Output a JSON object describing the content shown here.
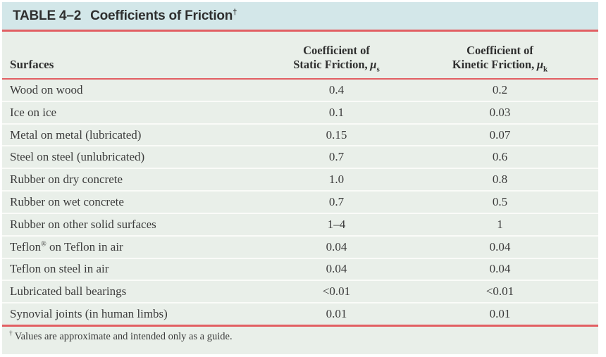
{
  "table": {
    "title": {
      "label": "TABLE 4–2",
      "text": "Coefficients of Friction",
      "dagger": "†"
    },
    "columns": {
      "surfaces": "Surfaces",
      "static": {
        "line1": "Coefficient of",
        "line2": "Static Friction,",
        "symbol": "μ",
        "sub": "s"
      },
      "kinetic": {
        "line1": "Coefficient of",
        "line2": "Kinetic Friction,",
        "symbol": "μ",
        "sub": "k"
      }
    },
    "rows": [
      {
        "surface_pre": "Wood on wood",
        "surface_sup": "",
        "surface_post": "",
        "static": "0.4",
        "kinetic": "0.2"
      },
      {
        "surface_pre": "Ice on ice",
        "surface_sup": "",
        "surface_post": "",
        "static": "0.1",
        "kinetic": "0.03"
      },
      {
        "surface_pre": "Metal on metal (lubricated)",
        "surface_sup": "",
        "surface_post": "",
        "static": "0.15",
        "kinetic": "0.07"
      },
      {
        "surface_pre": "Steel on steel (unlubricated)",
        "surface_sup": "",
        "surface_post": "",
        "static": "0.7",
        "kinetic": "0.6"
      },
      {
        "surface_pre": "Rubber on dry concrete",
        "surface_sup": "",
        "surface_post": "",
        "static": "1.0",
        "kinetic": "0.8"
      },
      {
        "surface_pre": "Rubber on wet concrete",
        "surface_sup": "",
        "surface_post": "",
        "static": "0.7",
        "kinetic": "0.5"
      },
      {
        "surface_pre": "Rubber on other solid surfaces",
        "surface_sup": "",
        "surface_post": "",
        "static": "1–4",
        "kinetic": "1"
      },
      {
        "surface_pre": "Teflon",
        "surface_sup": "®",
        "surface_post": " on Teflon in air",
        "static": "0.04",
        "kinetic": "0.04"
      },
      {
        "surface_pre": "Teflon on steel in air",
        "surface_sup": "",
        "surface_post": "",
        "static": "0.04",
        "kinetic": "0.04"
      },
      {
        "surface_pre": "Lubricated ball bearings",
        "surface_sup": "",
        "surface_post": "",
        "static": "<0.01",
        "kinetic": "<0.01"
      },
      {
        "surface_pre": "Synovial joints (in human limbs)",
        "surface_sup": "",
        "surface_post": "",
        "static": "0.01",
        "kinetic": "0.01"
      }
    ],
    "footnote": {
      "dagger": "†",
      "text": "Values are approximate and intended only as a guide."
    }
  },
  "colors": {
    "title_bg": "#d3e7e9",
    "body_bg": "#e9efe9",
    "rule": "#e25f63",
    "row_divider": "#fafbf8",
    "title_text": "#2f2f2f",
    "body_text": "#3c3c3c"
  }
}
